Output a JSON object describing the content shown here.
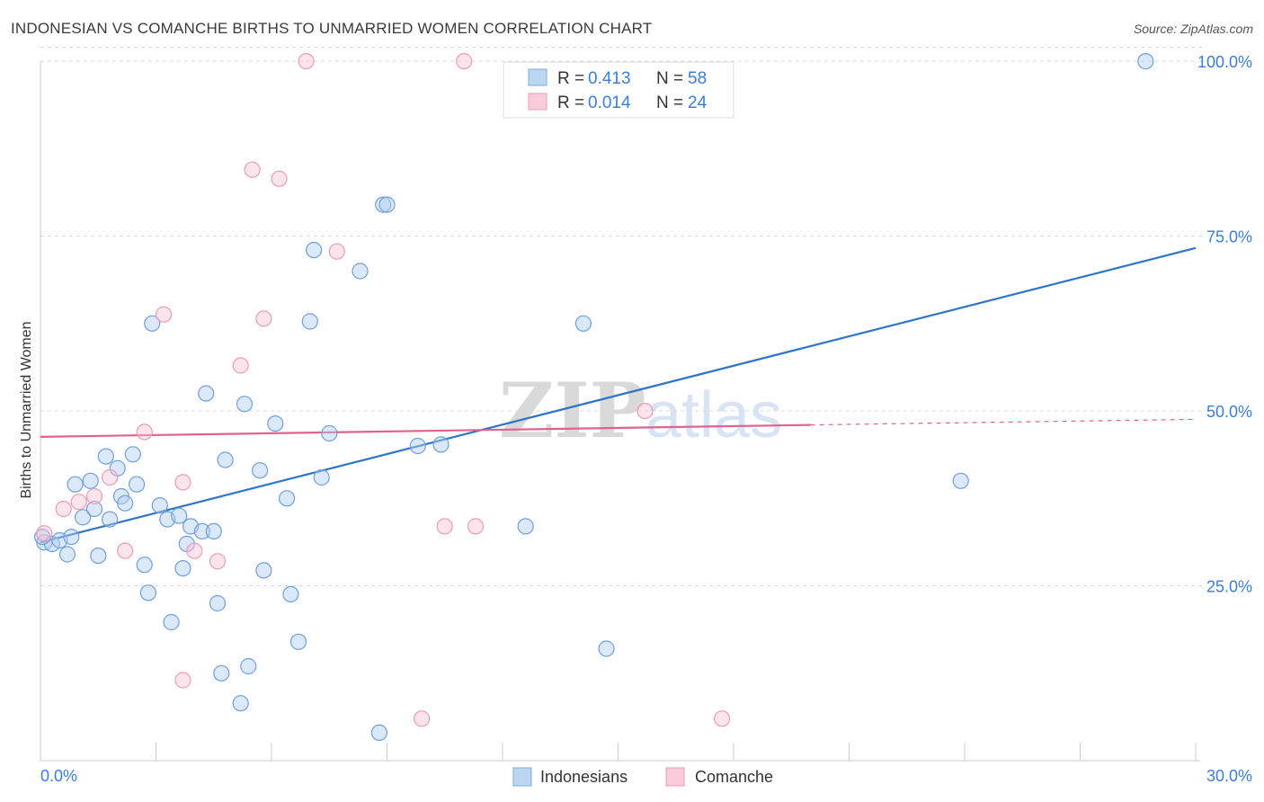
{
  "title": "INDONESIAN VS COMANCHE BIRTHS TO UNMARRIED WOMEN CORRELATION CHART",
  "source": "Source: ZipAtlas.com",
  "watermark": {
    "zip": "ZIP",
    "atlas": "atlas"
  },
  "legend_top": [
    {
      "r_label": "R = ",
      "r_value": "0.413",
      "n_label": "N = ",
      "n_value": "58"
    },
    {
      "r_label": "R = ",
      "r_value": "0.014",
      "n_label": "N = ",
      "n_value": "24"
    }
  ],
  "chart_data": {
    "type": "scatter",
    "title": "INDONESIAN VS COMANCHE BIRTHS TO UNMARRIED WOMEN CORRELATION CHART",
    "xlabel": "",
    "ylabel": "Births to Unmarried Women",
    "xlim": [
      0,
      30
    ],
    "ylim": [
      0,
      104
    ],
    "x_tick_labels": [
      "0.0%",
      "30.0%"
    ],
    "y_ticks": [
      25,
      50,
      75,
      100
    ],
    "y_tick_labels": [
      "25.0%",
      "50.0%",
      "75.0%",
      "100.0%"
    ],
    "grid": true,
    "legend_position": "bottom-center",
    "colors": {
      "Indonesians": "#5b9bd5",
      "Comanche": "#f08cb0",
      "trend_blue": "#2e75c9",
      "trend_pink": "#e0628f",
      "axis_text": "#3b7dd8"
    },
    "series": [
      {
        "name": "Indonesians",
        "r": 0.413,
        "n": 58,
        "trend": {
          "x": [
            0,
            30
          ],
          "y": [
            31.2,
            73.3
          ]
        },
        "points": [
          [
            0.1,
            31.2
          ],
          [
            0.3,
            31.0
          ],
          [
            0.5,
            31.5
          ],
          [
            0.7,
            29.5
          ],
          [
            0.8,
            32.0
          ],
          [
            0.9,
            39.5
          ],
          [
            1.1,
            34.8
          ],
          [
            1.3,
            40.0
          ],
          [
            1.4,
            36.0
          ],
          [
            1.5,
            29.3
          ],
          [
            1.7,
            43.5
          ],
          [
            1.8,
            34.5
          ],
          [
            2.0,
            41.8
          ],
          [
            2.1,
            37.8
          ],
          [
            2.2,
            36.8
          ],
          [
            2.4,
            43.8
          ],
          [
            2.5,
            39.5
          ],
          [
            2.7,
            28.0
          ],
          [
            2.8,
            24.0
          ],
          [
            2.9,
            62.5
          ],
          [
            3.1,
            36.5
          ],
          [
            3.3,
            34.5
          ],
          [
            3.4,
            19.8
          ],
          [
            3.6,
            35.0
          ],
          [
            3.7,
            27.5
          ],
          [
            3.8,
            31.0
          ],
          [
            3.9,
            33.5
          ],
          [
            4.2,
            32.8
          ],
          [
            4.3,
            52.5
          ],
          [
            4.5,
            32.8
          ],
          [
            4.6,
            22.5
          ],
          [
            4.7,
            12.5
          ],
          [
            4.8,
            43.0
          ],
          [
            5.2,
            8.2
          ],
          [
            5.3,
            51.0
          ],
          [
            5.4,
            13.5
          ],
          [
            5.7,
            41.5
          ],
          [
            5.8,
            27.2
          ],
          [
            6.1,
            48.2
          ],
          [
            6.4,
            37.5
          ],
          [
            6.5,
            23.8
          ],
          [
            6.7,
            17.0
          ],
          [
            7.0,
            62.8
          ],
          [
            7.1,
            73.0
          ],
          [
            7.3,
            40.5
          ],
          [
            7.5,
            46.8
          ],
          [
            8.3,
            70.0
          ],
          [
            8.9,
            79.5
          ],
          [
            9.0,
            79.5
          ],
          [
            8.8,
            4.0
          ],
          [
            9.8,
            45.0
          ],
          [
            10.4,
            45.2
          ],
          [
            12.6,
            33.5
          ],
          [
            14.1,
            62.5
          ],
          [
            14.7,
            16.0
          ],
          [
            23.9,
            40.0
          ],
          [
            28.7,
            100.0
          ],
          [
            0.05,
            32.0
          ]
        ]
      },
      {
        "name": "Comanche",
        "r": 0.014,
        "n": 24,
        "trend": {
          "x": [
            0,
            20
          ],
          "y": [
            46.3,
            48.0
          ]
        },
        "trend_dashed": {
          "x": [
            20,
            30
          ],
          "y": [
            48.0,
            48.8
          ]
        },
        "points": [
          [
            0.1,
            32.5
          ],
          [
            0.6,
            36.0
          ],
          [
            1.0,
            37.0
          ],
          [
            1.4,
            37.8
          ],
          [
            1.8,
            40.5
          ],
          [
            2.2,
            30.0
          ],
          [
            2.7,
            47.0
          ],
          [
            3.2,
            63.8
          ],
          [
            3.7,
            11.5
          ],
          [
            3.7,
            39.8
          ],
          [
            4.0,
            30.0
          ],
          [
            4.6,
            28.5
          ],
          [
            5.2,
            56.5
          ],
          [
            5.5,
            84.5
          ],
          [
            5.8,
            63.2
          ],
          [
            6.2,
            83.2
          ],
          [
            6.9,
            100.0
          ],
          [
            7.7,
            72.8
          ],
          [
            9.9,
            6.0
          ],
          [
            10.5,
            33.5
          ],
          [
            11.0,
            100.0
          ],
          [
            11.3,
            33.5
          ],
          [
            15.7,
            50.0
          ],
          [
            17.7,
            6.0
          ]
        ]
      }
    ]
  },
  "legend_bottom": [
    {
      "label": "Indonesians"
    },
    {
      "label": "Comanche"
    }
  ]
}
